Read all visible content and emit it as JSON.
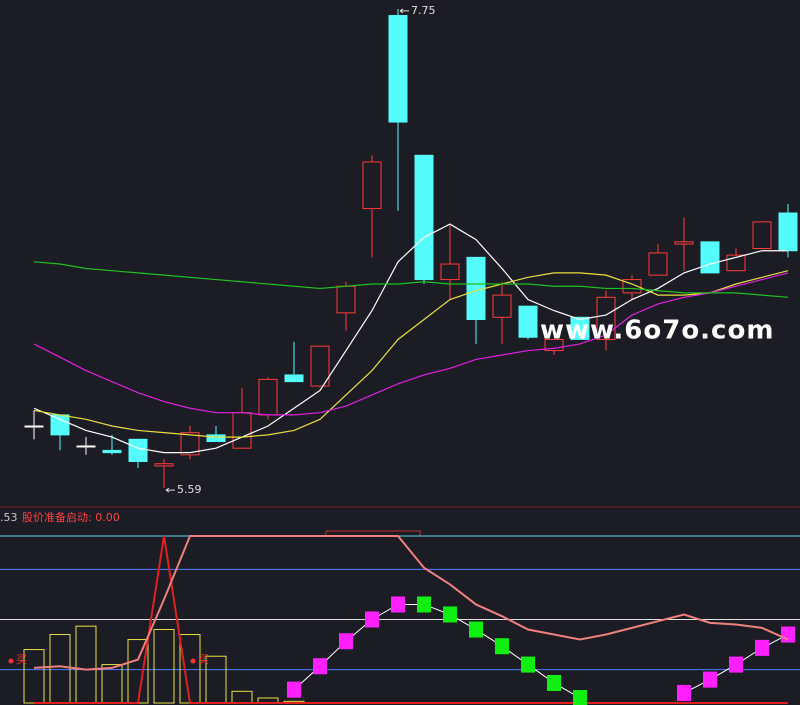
{
  "chart_data": [
    {
      "type": "candlestick",
      "open": [
        5.87,
        5.92,
        5.78,
        5.76,
        5.81,
        5.69,
        5.74,
        5.83,
        5.77,
        5.92,
        6.1,
        6.05,
        6.38,
        6.85,
        7.72,
        7.09,
        6.53,
        6.63,
        6.36,
        6.41,
        6.21,
        6.36,
        6.26,
        6.47,
        6.55,
        6.69,
        6.7,
        6.57,
        6.67,
        6.83
      ],
      "high": [
        5.94,
        5.92,
        5.82,
        5.83,
        5.81,
        5.72,
        5.87,
        5.87,
        6.04,
        6.09,
        6.25,
        6.23,
        6.52,
        7.09,
        7.75,
        7.09,
        6.78,
        6.63,
        6.52,
        6.41,
        6.26,
        6.36,
        6.48,
        6.55,
        6.69,
        6.81,
        6.7,
        6.67,
        6.79,
        6.87
      ],
      "low": [
        5.81,
        5.76,
        5.74,
        5.74,
        5.68,
        5.59,
        5.72,
        5.81,
        5.77,
        5.9,
        6.07,
        6.05,
        6.3,
        6.63,
        6.84,
        6.51,
        6.44,
        6.24,
        6.24,
        6.26,
        6.19,
        6.26,
        6.21,
        6.44,
        6.55,
        6.57,
        6.56,
        6.57,
        6.67,
        6.63
      ],
      "close": [
        5.87,
        5.83,
        5.78,
        5.75,
        5.71,
        5.7,
        5.84,
        5.8,
        5.93,
        6.08,
        6.07,
        6.23,
        6.5,
        7.06,
        7.24,
        6.53,
        6.6,
        6.35,
        6.46,
        6.27,
        6.26,
        6.26,
        6.45,
        6.53,
        6.65,
        6.7,
        6.56,
        6.64,
        6.79,
        6.66
      ],
      "ylim": [
        5.55,
        7.79
      ],
      "up_color": "#ff3b3b",
      "down_color": "#54fcfc",
      "flat_color": "#ffffff",
      "lines": [
        {
          "color": "#ffffff",
          "values": [
            5.95,
            5.9,
            5.85,
            5.82,
            5.77,
            5.75,
            5.75,
            5.77,
            5.82,
            5.87,
            5.95,
            6.03,
            6.21,
            6.39,
            6.61,
            6.72,
            6.78,
            6.71,
            6.58,
            6.44,
            6.39,
            6.35,
            6.37,
            6.44,
            6.49,
            6.56,
            6.6,
            6.63,
            6.66,
            6.66
          ]
        },
        {
          "color": "#e8e040",
          "values": [
            5.94,
            5.92,
            5.9,
            5.87,
            5.85,
            5.84,
            5.83,
            5.82,
            5.82,
            5.83,
            5.85,
            5.9,
            6.01,
            6.12,
            6.26,
            6.35,
            6.44,
            6.48,
            6.51,
            6.54,
            6.56,
            6.56,
            6.55,
            6.51,
            6.46,
            6.46,
            6.47,
            6.51,
            6.54,
            6.57
          ]
        },
        {
          "color": "#e020e0",
          "values": [
            6.24,
            6.18,
            6.12,
            6.07,
            6.02,
            5.98,
            5.95,
            5.93,
            5.93,
            5.92,
            5.92,
            5.93,
            5.96,
            6.01,
            6.06,
            6.1,
            6.13,
            6.17,
            6.19,
            6.21,
            6.22,
            6.24,
            6.28,
            6.37,
            6.42,
            6.45,
            6.47,
            6.5,
            6.53,
            6.56
          ]
        },
        {
          "color": "#20c020",
          "values": [
            6.61,
            6.6,
            6.58,
            6.57,
            6.56,
            6.55,
            6.54,
            6.53,
            6.52,
            6.51,
            6.5,
            6.49,
            6.5,
            6.51,
            6.51,
            6.52,
            6.51,
            6.51,
            6.51,
            6.51,
            6.5,
            6.5,
            6.49,
            6.49,
            6.48,
            6.47,
            6.47,
            6.47,
            6.46,
            6.45
          ]
        }
      ],
      "max_label": 7.75,
      "min_label": 5.59,
      "watermark": "www.6o7o.com"
    },
    {
      "type": "indicator",
      "header": [
        ".53",
        "股价准备启动: 0.00"
      ],
      "ylim": [
        0,
        100
      ],
      "levels": [
        20,
        50,
        80,
        100
      ],
      "level_colors": [
        "#4a7cff",
        "#e0e0e0",
        "#4a7cff",
        "#5fd6e6"
      ],
      "line": {
        "color": "#f08080",
        "values": [
          21,
          22,
          20,
          21,
          26,
          62,
          100,
          100,
          100,
          100,
          100,
          100,
          100,
          100,
          100,
          81,
          71,
          59,
          52,
          44,
          41,
          38,
          41,
          45,
          49,
          53,
          48,
          47,
          45,
          38
        ]
      },
      "spike": {
        "color": "#e02020",
        "values": [
          0,
          0,
          0,
          0,
          0,
          100,
          0,
          0,
          0,
          0,
          0,
          0,
          0,
          0,
          0,
          0,
          0,
          0,
          0,
          0,
          0,
          0,
          0,
          0,
          0,
          0,
          0,
          0,
          0,
          0
        ]
      },
      "bars": {
        "color": "#e8e040",
        "values": [
          32,
          41,
          46,
          23,
          38,
          44,
          41,
          28,
          7,
          3,
          1,
          0,
          0,
          0,
          0,
          0,
          0,
          0,
          0,
          0,
          0,
          0,
          0,
          0,
          0,
          0,
          0,
          0,
          0,
          0
        ]
      },
      "blocks": {
        "colors": [
          "#ff20ff",
          "#10f010"
        ],
        "values": [
          null,
          null,
          null,
          null,
          null,
          null,
          null,
          null,
          null,
          null,
          8,
          22,
          37,
          50,
          59,
          59,
          53,
          44,
          34,
          23,
          12,
          3,
          null,
          null,
          null,
          6,
          14,
          23,
          33,
          41
        ]
      },
      "signal": "买"
    }
  ]
}
